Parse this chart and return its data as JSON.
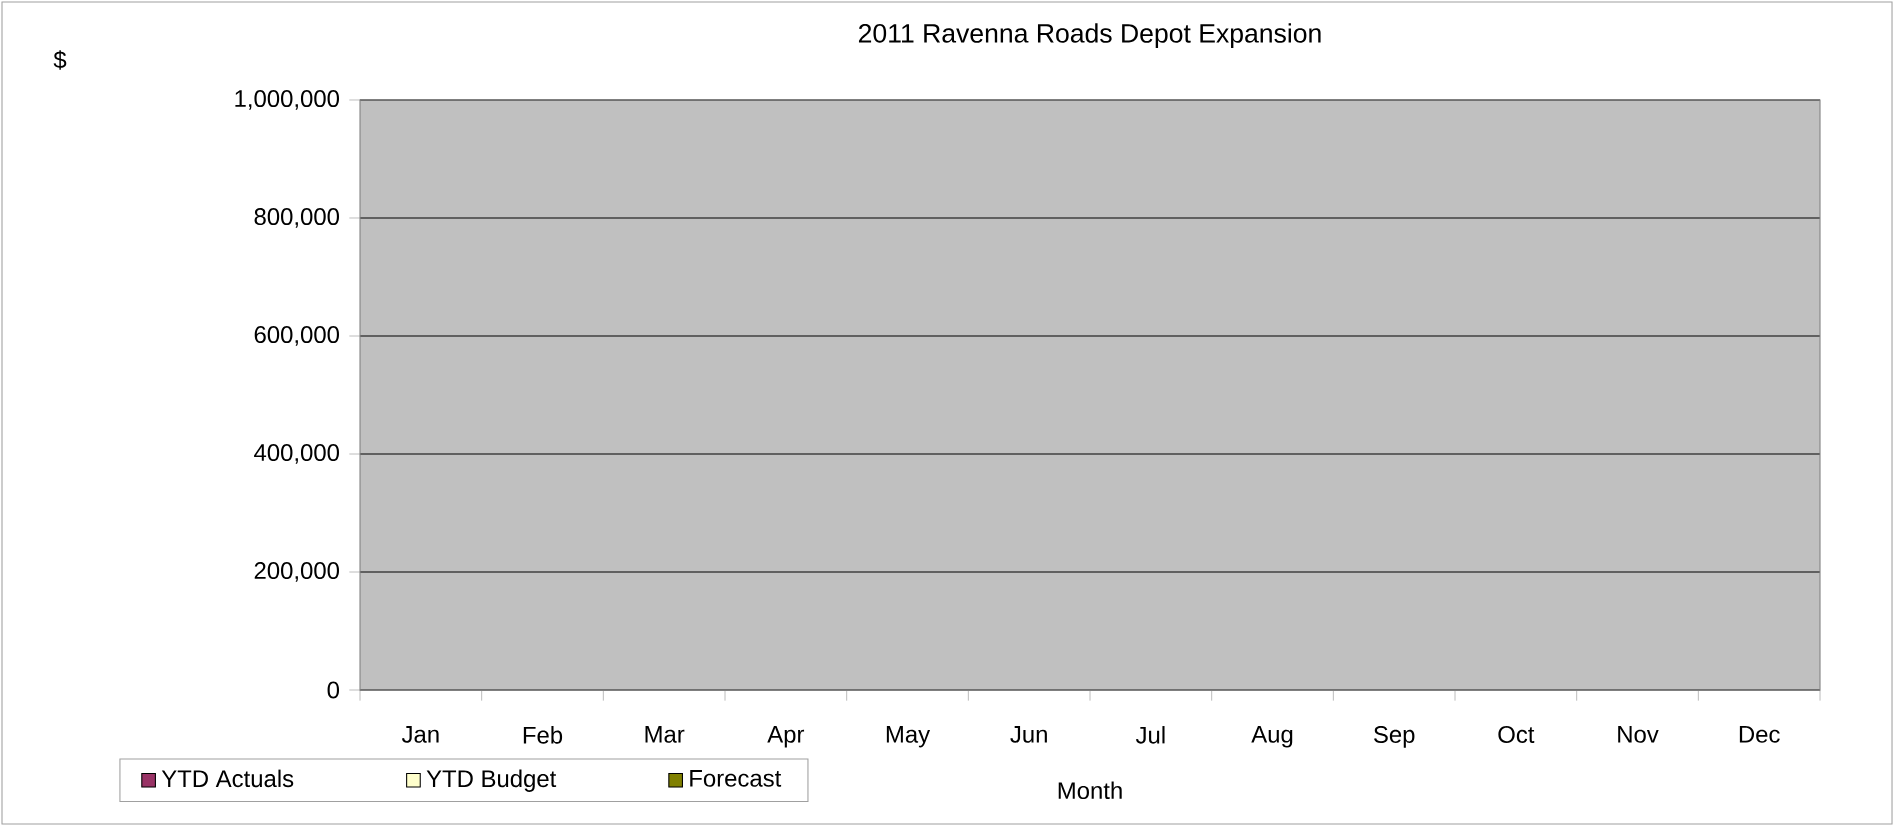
{
  "chart_data": {
    "type": "bar",
    "title": "2011 Ravenna Roads Depot Expansion",
    "xlabel": "Month",
    "annotations": [
      "$"
    ],
    "categories": [
      "Jan",
      "Feb",
      "Mar",
      "Apr",
      "May",
      "Jun",
      "Jul",
      "Aug",
      "Sep",
      "Oct",
      "Nov",
      "Dec"
    ],
    "series": [
      {
        "name": "YTD Actuals",
        "color": "#993366",
        "values": [
          null,
          null,
          null,
          null,
          null,
          null,
          null,
          null,
          null,
          null,
          null,
          null
        ]
      },
      {
        "name": "YTD Budget",
        "color": "#ffffcc",
        "values": [
          null,
          null,
          null,
          null,
          null,
          null,
          null,
          null,
          null,
          null,
          null,
          null
        ]
      },
      {
        "name": "Forecast",
        "color": "#808000",
        "values": [
          null,
          null,
          null,
          null,
          null,
          null,
          null,
          null,
          null,
          null,
          null,
          null
        ]
      }
    ],
    "ylim": [
      0,
      1000000
    ],
    "yticks": [
      {
        "value": 0,
        "label": "0"
      },
      {
        "value": 200000,
        "label": "200,000"
      },
      {
        "value": 400000,
        "label": "400,000"
      },
      {
        "value": 600000,
        "label": "600,000"
      },
      {
        "value": 800000,
        "label": "800,000"
      },
      {
        "value": 1000000,
        "label": "1,000,000"
      }
    ],
    "grid": "y",
    "legend": "bottom left"
  }
}
